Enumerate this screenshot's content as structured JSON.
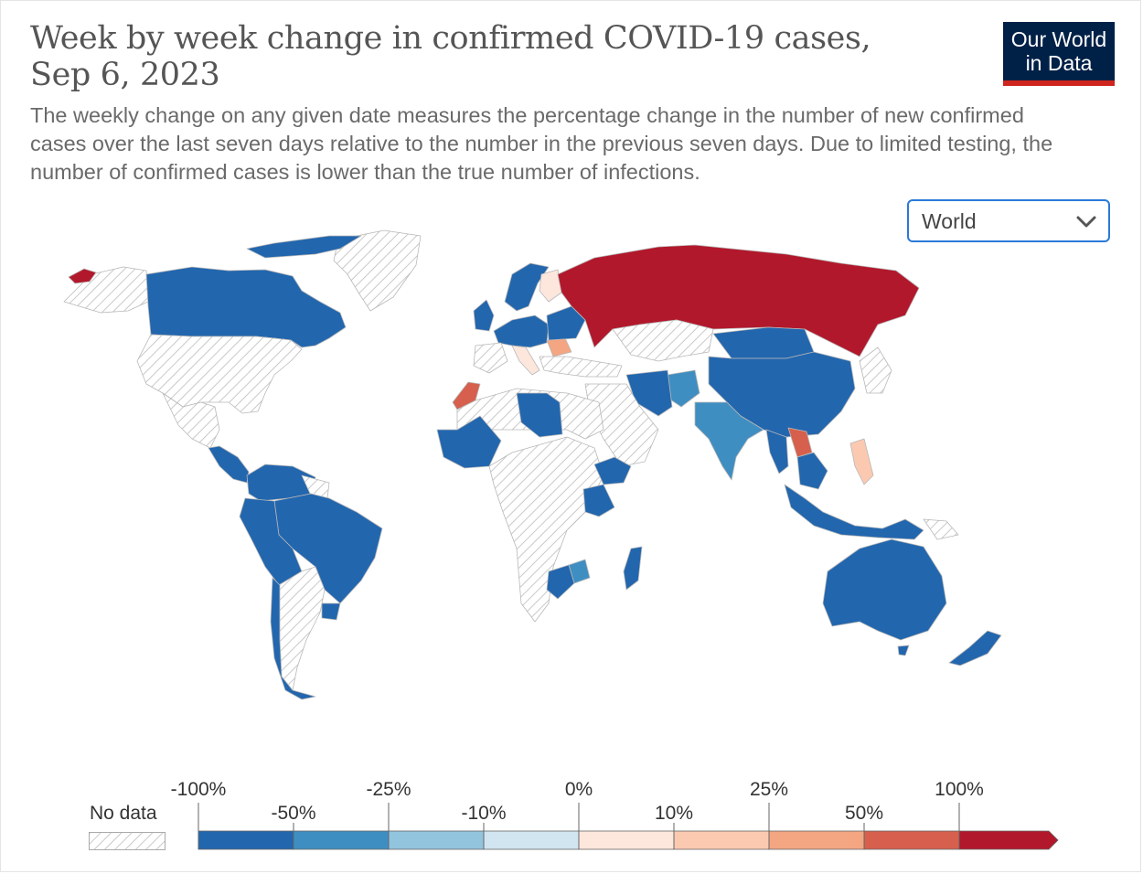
{
  "header": {
    "title": "Week by week change in confirmed COVID-19 cases, Sep 6, 2023",
    "subtitle": "The weekly change on any given date measures the percentage change in the number of new confirmed cases over the last seven days relative to the number in the previous seven days. Due to limited testing, the number of confirmed cases is lower than the true number of infections.",
    "logo_line1": "Our World",
    "logo_line2": "in Data"
  },
  "colors": {
    "logo_bg": "#002147",
    "logo_accent": "#ce261e",
    "select_border": "#2a7ad8"
  },
  "controls": {
    "region_select": {
      "selected": "World",
      "icon": "chevron-down-icon"
    }
  },
  "map": {
    "region": "World",
    "date": "Sep 6, 2023",
    "categories_by_country": {
      "Russia": ">100%",
      "Laos": "50% to 100%",
      "Morocco": "50% to 100%",
      "Romania": "25% to 50%",
      "Philippines": "10% to 25%",
      "Finland": "0% to 10%",
      "Italy": "0% to 10%",
      "India": "-50% to -25%",
      "Afghanistan": "-50% to -25%",
      "Zimbabwe": "-50% to -25%",
      "Canada": "<-50%",
      "Brazil": "<-50%",
      "Australia": "<-50%",
      "China": "<-50%",
      "Iran": "<-50%",
      "Kazakhstan": "No data",
      "United States": "No data",
      "Greenland": "No data"
    }
  },
  "legend": {
    "no_data_label": "No data",
    "upper_labels": [
      "-100%",
      "-25%",
      "0%",
      "25%",
      "100%"
    ],
    "lower_labels": [
      "-50%",
      "-10%",
      "10%",
      "50%"
    ],
    "bins": [
      {
        "range": "-100% to -50%",
        "color": "#2266ae"
      },
      {
        "range": "-50% to -25%",
        "color": "#3f8ec2"
      },
      {
        "range": "-25% to -10%",
        "color": "#92c4de"
      },
      {
        "range": "-10% to 0%",
        "color": "#d1e5f0"
      },
      {
        "range": "0% to 10%",
        "color": "#fde6dc"
      },
      {
        "range": "10% to 25%",
        "color": "#fbc9b0"
      },
      {
        "range": "25% to 50%",
        "color": "#f4a582"
      },
      {
        "range": "50% to 100%",
        "color": "#d6604d"
      },
      {
        "range": ">100%",
        "color": "#b2182b"
      }
    ]
  }
}
